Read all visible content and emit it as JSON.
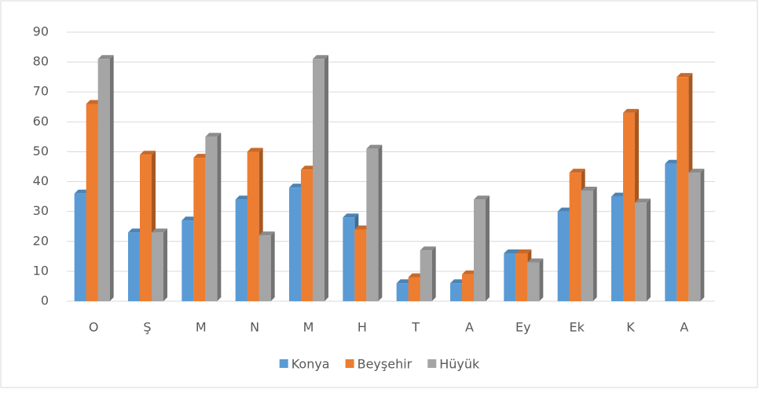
{
  "chart_data": {
    "type": "bar",
    "categories": [
      "O",
      "Ş",
      "M",
      "N",
      "M",
      "H",
      "T",
      "A",
      "Ey",
      "Ek",
      "K",
      "A"
    ],
    "series": [
      {
        "name": "Konya",
        "color": "#5b9bd5",
        "values": [
          36,
          23,
          27,
          34,
          38,
          28,
          6,
          6,
          16,
          30,
          35,
          46
        ]
      },
      {
        "name": "Beyşehir",
        "color": "#ed7d31",
        "values": [
          66,
          49,
          48,
          50,
          44,
          24,
          8,
          9,
          16,
          43,
          63,
          75
        ]
      },
      {
        "name": "Hüyük",
        "color": "#a5a5a5",
        "values": [
          81,
          23,
          55,
          22,
          81,
          51,
          17,
          34,
          13,
          37,
          33,
          43
        ]
      }
    ],
    "ylim": [
      0,
      90
    ],
    "yticks": [
      0,
      10,
      20,
      30,
      40,
      50,
      60,
      70,
      80,
      90
    ],
    "grid": true,
    "legend": "bottom"
  }
}
